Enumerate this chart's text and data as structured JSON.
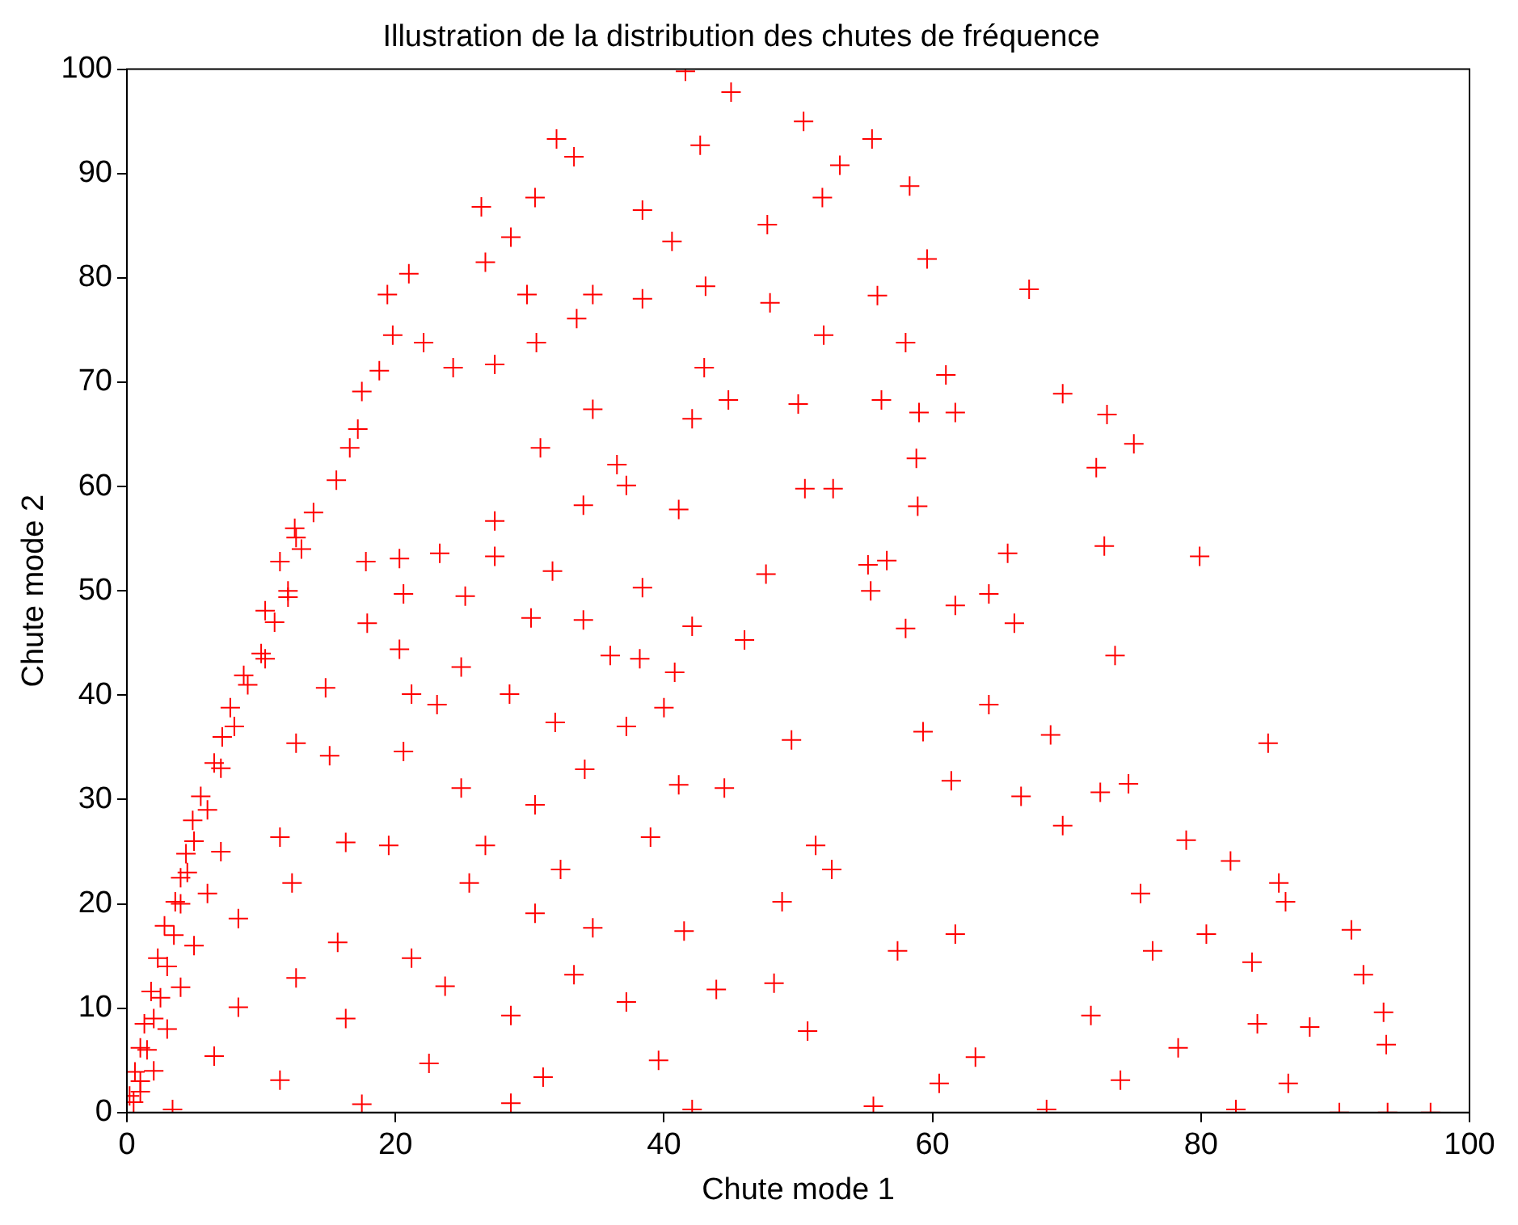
{
  "chart_data": {
    "type": "scatter",
    "title": "Illustration de la distribution des chutes de fréquence",
    "xlabel": "Chute mode 1",
    "ylabel": "Chute mode 2",
    "marker": "cross",
    "grid": false,
    "legend": false,
    "xlim": [
      0,
      100
    ],
    "xticks": [
      0,
      20,
      40,
      60,
      80,
      100
    ],
    "ylim": [
      0,
      100
    ],
    "yticks": [
      0,
      10,
      20,
      30,
      40,
      50,
      60,
      70,
      80,
      90,
      100
    ],
    "series": [
      {
        "color": "#ff0000",
        "x": [
          41.6,
          45.0,
          32.0,
          33.3,
          42.7,
          50.4,
          55.5,
          53.1,
          30.4,
          26.4,
          38.4,
          47.7,
          40.6,
          51.8,
          58.3,
          59.6,
          28.6,
          26.7,
          21.0,
          19.4,
          29.8,
          34.7,
          38.4,
          43.1,
          47.9,
          51.9,
          55.9,
          67.2,
          19.8,
          22.1,
          30.5,
          33.5,
          43.0,
          44.8,
          50.0,
          58.0,
          61.0,
          69.7,
          73.0,
          75.0,
          18.8,
          17.5,
          24.3,
          27.4,
          34.7,
          42.1,
          56.2,
          59.0,
          61.7,
          17.2,
          16.6,
          30.8,
          36.5,
          58.8,
          72.2,
          15.6,
          13.9,
          34.0,
          37.2,
          41.1,
          58.9,
          50.5,
          52.6,
          27.4,
          12.6,
          11.4,
          17.8,
          20.3,
          23.3,
          27.4,
          31.7,
          47.6,
          55.2,
          56.6,
          65.6,
          72.8,
          79.9,
          12.0,
          20.6,
          25.2,
          38.4,
          55.4,
          61.7,
          64.2,
          66.1,
          10.3,
          17.9,
          30.1,
          34.0,
          42.1,
          58.0,
          46.0,
          10.3,
          20.3,
          24.9,
          36.0,
          38.2,
          40.8,
          73.6,
          8.7,
          14.8,
          21.2,
          28.5,
          23.1,
          64.2,
          7.7,
          40.0,
          37.2,
          31.9,
          49.5,
          7.1,
          12.6,
          59.3,
          68.8,
          85.0,
          6.5,
          15.1,
          20.6,
          34.1,
          44.5,
          61.4,
          74.6,
          72.5,
          5.5,
          24.9,
          30.4,
          41.1,
          66.6,
          4.9,
          69.7,
          11.4,
          16.3,
          19.5,
          26.7,
          39.0,
          51.3,
          78.9,
          4.4,
          52.5,
          82.2,
          4.0,
          12.3,
          25.5,
          32.3,
          85.8,
          3.6,
          8.3,
          30.4,
          48.8,
          75.5,
          86.3,
          2.8,
          34.7,
          41.5,
          61.7,
          80.4,
          91.2,
          15.7,
          57.4,
          76.4,
          2.3,
          21.2,
          83.8,
          12.6,
          23.7,
          33.3,
          92.1,
          1.8,
          43.9,
          48.2,
          8.3,
          37.2,
          71.8,
          93.6,
          1.3,
          16.3,
          28.6,
          50.7,
          84.2,
          88.1,
          1.0,
          6.5,
          22.5,
          39.6,
          63.2,
          78.3,
          93.8,
          0.6,
          11.4,
          31.0,
          60.5,
          74.0,
          86.5,
          0.2,
          3.4,
          17.5,
          28.6,
          42.1,
          55.6,
          68.5,
          82.6,
          90.3,
          93.9,
          97.1,
          1,
          1.5,
          2,
          2.5,
          3,
          3.5,
          4,
          4.5,
          5,
          6,
          7,
          8,
          9,
          10,
          11,
          12,
          13,
          12.5,
          2,
          3,
          4,
          5,
          6,
          7,
          0.5,
          1
        ],
        "values": [
          99.8,
          97.8,
          93.3,
          91.6,
          92.7,
          95.0,
          93.3,
          90.8,
          87.7,
          86.8,
          86.5,
          85.1,
          83.5,
          87.7,
          88.8,
          81.8,
          83.9,
          81.5,
          80.4,
          78.4,
          78.4,
          78.4,
          78.0,
          79.2,
          77.6,
          74.5,
          78.3,
          78.9,
          74.5,
          73.8,
          73.8,
          76.1,
          71.4,
          68.3,
          67.9,
          73.8,
          70.7,
          68.9,
          66.9,
          64.1,
          71.1,
          69.1,
          71.4,
          71.7,
          67.4,
          66.5,
          68.3,
          67.1,
          67.1,
          65.5,
          63.7,
          63.7,
          62.1,
          62.7,
          61.8,
          60.6,
          57.5,
          58.2,
          60.1,
          57.8,
          58.1,
          59.8,
          59.8,
          56.7,
          55.1,
          52.8,
          52.8,
          53.1,
          53.6,
          53.3,
          51.9,
          51.6,
          52.5,
          52.9,
          53.6,
          54.3,
          53.3,
          49.4,
          49.7,
          49.5,
          50.3,
          50.0,
          48.6,
          49.7,
          46.9,
          48.1,
          46.9,
          47.4,
          47.2,
          46.6,
          46.4,
          45.3,
          43.5,
          44.4,
          42.7,
          43.8,
          43.5,
          42.2,
          43.8,
          41.9,
          40.7,
          40.1,
          40.1,
          39.1,
          39.1,
          38.8,
          38.8,
          37.0,
          37.4,
          35.7,
          36.0,
          35.4,
          36.5,
          36.2,
          35.4,
          33.5,
          34.2,
          34.6,
          32.9,
          31.1,
          31.8,
          31.5,
          30.7,
          30.3,
          31.1,
          29.5,
          31.4,
          30.3,
          28.0,
          27.5,
          26.4,
          25.9,
          25.6,
          25.6,
          26.4,
          25.6,
          26.1,
          24.8,
          23.3,
          24.1,
          22.5,
          22.0,
          22.0,
          23.3,
          22.0,
          20.2,
          18.6,
          19.1,
          20.2,
          21.0,
          20.2,
          17.9,
          17.7,
          17.4,
          17.1,
          17.1,
          17.5,
          16.3,
          15.5,
          15.5,
          14.8,
          14.8,
          14.4,
          12.9,
          12.1,
          13.2,
          13.2,
          11.6,
          11.8,
          12.4,
          10.1,
          10.6,
          9.3,
          9.6,
          8.5,
          9.0,
          9.3,
          7.8,
          8.5,
          8.2,
          6.2,
          5.4,
          4.7,
          5.0,
          5.3,
          6.2,
          6.5,
          3.9,
          3.1,
          3.4,
          2.8,
          3.1,
          2.8,
          1.6,
          0.3,
          0.8,
          0.9,
          0.3,
          0.6,
          0.3,
          0.3,
          0,
          0,
          0,
          3,
          6,
          9,
          11,
          14,
          17,
          20,
          23,
          26,
          29,
          33,
          37,
          41,
          44,
          47,
          50,
          54,
          56,
          4,
          8,
          12,
          16,
          21,
          25,
          1,
          2
        ]
      }
    ]
  }
}
